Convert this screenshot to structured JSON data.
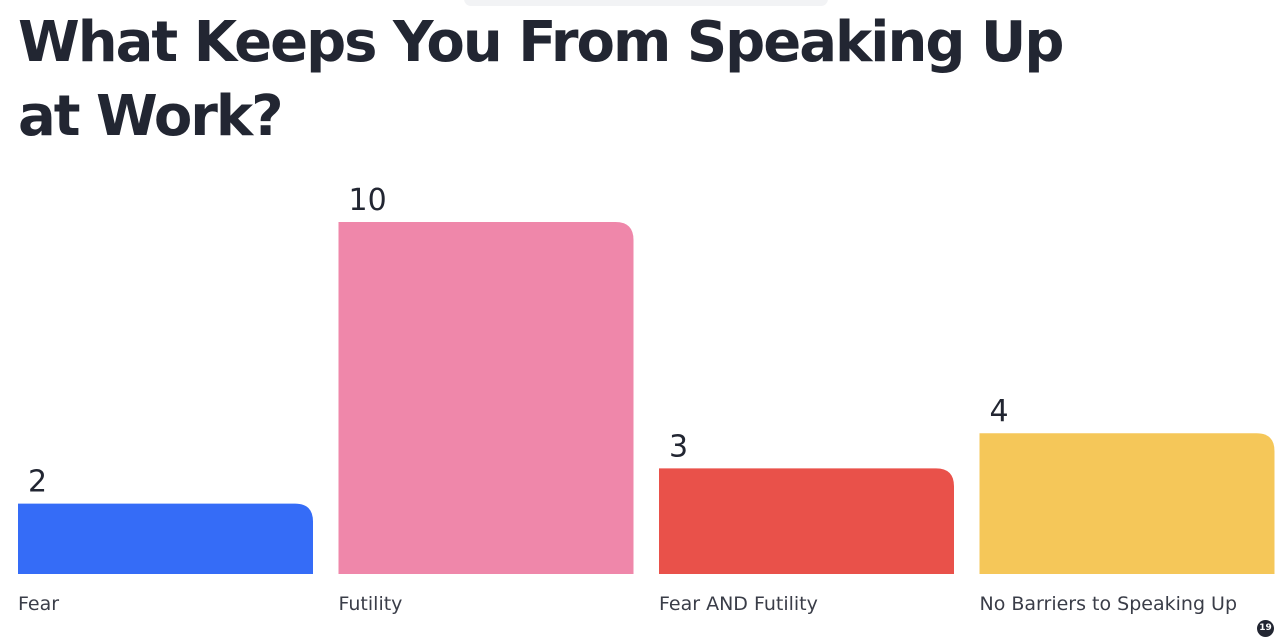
{
  "title": "What Keeps You From Speaking Up at Work?",
  "badge": "19",
  "colors": {
    "text": "#222632",
    "background": "#ffffff"
  },
  "chart_data": {
    "type": "bar",
    "title": "What Keeps You From Speaking Up at Work?",
    "categories": [
      "Fear",
      "Futility",
      "Fear AND Futility",
      "No Barriers to Speaking Up"
    ],
    "values": [
      2,
      10,
      3,
      4
    ],
    "colors": [
      "#356cf7",
      "#ef87aa",
      "#e9514a",
      "#f5c759"
    ],
    "xlabel": "",
    "ylabel": "",
    "ylim": [
      0,
      10
    ],
    "grid": false,
    "legend": "none",
    "data_labels": true
  }
}
